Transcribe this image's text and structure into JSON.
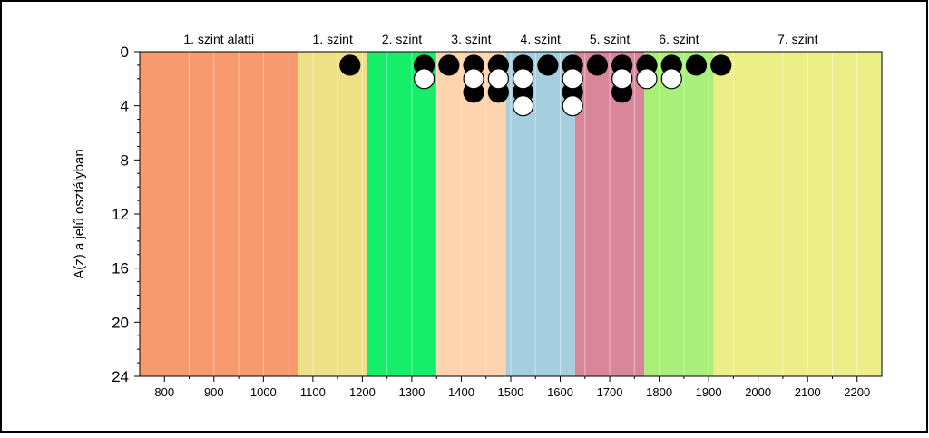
{
  "chart_data": {
    "type": "scatter",
    "ylabel": "A(z) a jelű osztályban",
    "xlim": [
      750,
      2250
    ],
    "ylim": [
      0,
      24
    ],
    "y_inverted": true,
    "x_ticks": [
      800,
      900,
      1000,
      1100,
      1200,
      1300,
      1400,
      1500,
      1600,
      1700,
      1800,
      1900,
      2000,
      2100,
      2200
    ],
    "y_ticks": [
      0,
      4,
      8,
      12,
      16,
      20,
      24
    ],
    "grid": "vertical",
    "bands": [
      {
        "label": "1. szint alatti",
        "from": 750,
        "to": 1070,
        "color": "#f79a6e"
      },
      {
        "label": "1. szint",
        "from": 1070,
        "to": 1210,
        "color": "#ede087"
      },
      {
        "label": "2. szint",
        "from": 1210,
        "to": 1350,
        "color": "#14ee69"
      },
      {
        "label": "3. szint",
        "from": 1350,
        "to": 1490,
        "color": "#fdd4ae"
      },
      {
        "label": "4. szint",
        "from": 1490,
        "to": 1630,
        "color": "#a5cfdf"
      },
      {
        "label": "5. szint",
        "from": 1630,
        "to": 1770,
        "color": "#d9869a"
      },
      {
        "label": "6. szint",
        "from": 1770,
        "to": 1910,
        "color": "#a8f07a"
      },
      {
        "label": "7. szint",
        "from": 1910,
        "to": 2250,
        "color": "#ecef87"
      }
    ],
    "series": [
      {
        "color": "#000000",
        "x": [
          1175,
          1325,
          1375,
          1425,
          1425,
          1475,
          1475,
          1525,
          1525,
          1575,
          1625,
          1625,
          1675,
          1725,
          1725,
          1775,
          1825,
          1875,
          1925
        ],
        "y": [
          1,
          1,
          1,
          1,
          3,
          1,
          3,
          1,
          3,
          1,
          1,
          3,
          1,
          1,
          3,
          1,
          1,
          1,
          1
        ]
      },
      {
        "color": "#ffffff",
        "x": [
          1325,
          1425,
          1475,
          1525,
          1525,
          1625,
          1625,
          1725,
          1775,
          1825
        ],
        "y": [
          2,
          2,
          2,
          2,
          4,
          2,
          4,
          2,
          2,
          2
        ]
      }
    ]
  }
}
